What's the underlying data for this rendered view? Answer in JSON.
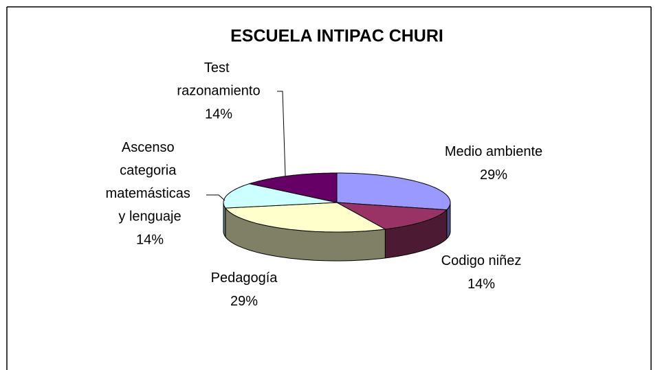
{
  "chart_data": {
    "type": "pie",
    "title": "ESCUELA INTIPAC CHURI",
    "categories": [
      "Medio ambiente",
      "Codigo niñez",
      "Pedagogía",
      "Ascenso categoria matemásticas y lenguaje",
      "Test razonamiento"
    ],
    "values": [
      29,
      14,
      29,
      14,
      14
    ],
    "value_labels": [
      "29%",
      "14%",
      "29%",
      "14%",
      "14%"
    ],
    "colors": [
      "#9999ff",
      "#993366",
      "#ffffcc",
      "#ccffff",
      "#660066"
    ]
  }
}
